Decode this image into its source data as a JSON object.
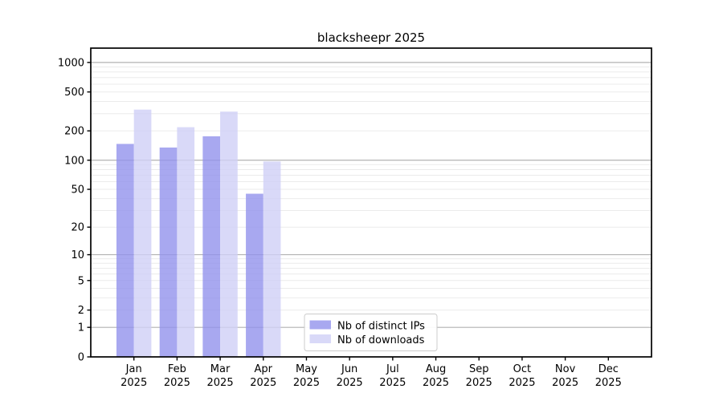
{
  "chart_data": {
    "type": "bar",
    "title": "blacksheepr 2025",
    "xlabel": "",
    "ylabel": "",
    "yscale": "log1p",
    "ylim": [
      0,
      1400
    ],
    "yticks": [
      0,
      1,
      2,
      5,
      10,
      20,
      50,
      100,
      200,
      500,
      1000
    ],
    "grid": true,
    "grid_major_values": [
      1,
      10,
      100,
      1000
    ],
    "legend_position": "lower center",
    "categories": [
      "Jan 2025",
      "Feb 2025",
      "Mar 2025",
      "Apr 2025",
      "May 2025",
      "Jun 2025",
      "Jul 2025",
      "Aug 2025",
      "Sep 2025",
      "Oct 2025",
      "Nov 2025",
      "Dec 2025"
    ],
    "series": [
      {
        "name": "Nb of distinct IPs",
        "color": "#9292ec",
        "values": [
          147,
          135,
          176,
          45,
          0,
          0,
          0,
          0,
          0,
          0,
          0,
          0
        ]
      },
      {
        "name": "Nb of downloads",
        "color": "#d0d0f6",
        "values": [
          330,
          218,
          315,
          97,
          0,
          0,
          0,
          0,
          0,
          0,
          0,
          0
        ]
      }
    ]
  },
  "colors": {
    "background": "#ffffff",
    "spine": "#000000",
    "tick_text": "#000000",
    "grid_major": "#b2b2b2",
    "grid_minor": "#ebebeb",
    "legend_border": "#cccccc",
    "legend_background": "#ffffff",
    "bar_dark": "#9292ec",
    "bar_light": "#d0d0f6"
  }
}
